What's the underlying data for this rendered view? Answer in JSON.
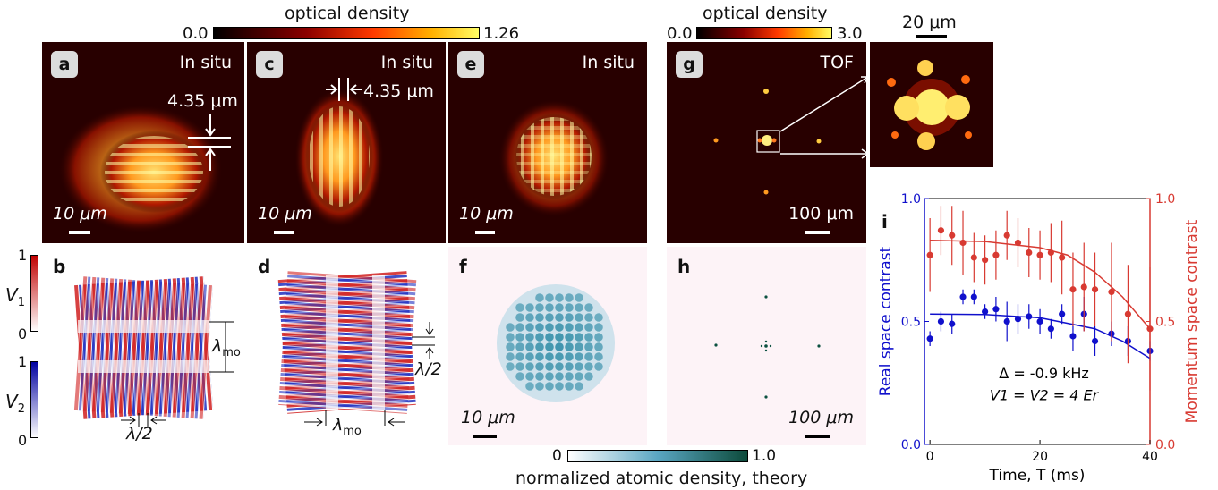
{
  "colorbars": {
    "od1": {
      "title": "optical density",
      "min": "0.0",
      "max": "1.26"
    },
    "od2": {
      "title": "optical density",
      "min": "0.0",
      "max": "3.0"
    },
    "v1": {
      "label": "V",
      "sub": "1",
      "max": "1",
      "min": "0"
    },
    "v2": {
      "label": "V",
      "sub": "2",
      "max": "1",
      "min": "0"
    },
    "theory": {
      "title": "normalized atomic density, theory",
      "min": "0",
      "max": "1.0"
    }
  },
  "panels": {
    "a": {
      "label": "a",
      "tag": "In situ",
      "scale": "10 μm",
      "spacing": "4.35 μm"
    },
    "c": {
      "label": "c",
      "tag": "In situ",
      "scale": "10 μm",
      "spacing": "4.35 μm"
    },
    "e": {
      "label": "e",
      "tag": "In situ",
      "scale": "10 μm"
    },
    "g": {
      "label": "g",
      "tag": "TOF",
      "scale": "100 μm"
    },
    "zoom": {
      "scale": "20 μm"
    },
    "b": {
      "label": "b",
      "lambda_mo": "λ",
      "lambda_mo_sub": "mo",
      "half_lambda": "λ/2"
    },
    "d": {
      "label": "d",
      "lambda_mo": "λ",
      "lambda_mo_sub": "mo",
      "half_lambda": "λ/2"
    },
    "f": {
      "label": "f",
      "scale": "10 μm"
    },
    "h": {
      "label": "h",
      "scale": "100 μm"
    },
    "i": {
      "label": "i"
    }
  },
  "chart_data": {
    "type": "scatter",
    "xlabel": "Time, T (ms)",
    "ylabel_left": "Real space contrast",
    "ylabel_right": "Momentum space contrast",
    "xlim": [
      -1,
      40
    ],
    "ylim": [
      0,
      1
    ],
    "xticks": [
      0,
      20,
      40
    ],
    "yticks_left": [
      "0.0",
      "0.5",
      "1.0"
    ],
    "yticks_right": [
      "0.0",
      "0.5",
      "1.0"
    ],
    "annotation_1": "Δ = -0.9 kHz",
    "annotation_2": "V1 = V2 = 4 Er",
    "colors": {
      "real": "#1010cc",
      "momentum": "#d83a32"
    },
    "series": [
      {
        "x": [
          0,
          2,
          4,
          6,
          8,
          10,
          12,
          14,
          16,
          18,
          20,
          22,
          24,
          26,
          28,
          30,
          33,
          36,
          40
        ],
        "y": [
          0.43,
          0.5,
          0.49,
          0.6,
          0.6,
          0.54,
          0.55,
          0.5,
          0.51,
          0.52,
          0.5,
          0.47,
          0.53,
          0.44,
          0.53,
          0.42,
          0.45,
          0.42,
          0.38
        ],
        "err": [
          0.03,
          0.04,
          0.04,
          0.03,
          0.03,
          0.03,
          0.05,
          0.08,
          0.06,
          0.05,
          0.05,
          0.04,
          0.04,
          0.06,
          0.07,
          0.06,
          0.05,
          0.06,
          0.04
        ],
        "fit": [
          [
            0,
            0.53
          ],
          [
            10,
            0.528
          ],
          [
            20,
            0.515
          ],
          [
            30,
            0.47
          ],
          [
            35,
            0.42
          ],
          [
            40,
            0.35
          ]
        ]
      },
      {
        "x": [
          0,
          2,
          4,
          6,
          8,
          10,
          12,
          14,
          16,
          18,
          20,
          22,
          24,
          26,
          28,
          30,
          33,
          36,
          40
        ],
        "y": [
          0.77,
          0.87,
          0.85,
          0.82,
          0.76,
          0.75,
          0.77,
          0.85,
          0.82,
          0.78,
          0.77,
          0.78,
          0.76,
          0.63,
          0.64,
          0.63,
          0.62,
          0.53,
          0.47
        ],
        "err": [
          0.15,
          0.1,
          0.12,
          0.13,
          0.1,
          0.1,
          0.1,
          0.1,
          0.1,
          0.1,
          0.1,
          0.12,
          0.15,
          0.15,
          0.18,
          0.15,
          0.2,
          0.2,
          0.25
        ],
        "fit": [
          [
            0,
            0.83
          ],
          [
            10,
            0.825
          ],
          [
            20,
            0.8
          ],
          [
            25,
            0.77
          ],
          [
            30,
            0.7
          ],
          [
            35,
            0.6
          ],
          [
            40,
            0.47
          ]
        ]
      }
    ]
  }
}
